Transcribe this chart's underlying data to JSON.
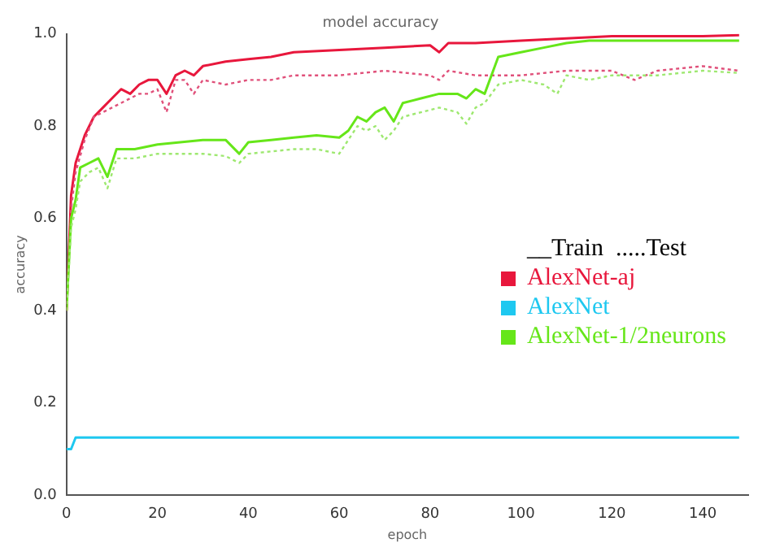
{
  "chart_data": {
    "type": "line",
    "title": "model accuracy",
    "xlabel": "epoch",
    "ylabel": "accuracy",
    "legend_title": "__Train  .....Test",
    "legend": "right",
    "marker": "none",
    "grid": false,
    "xlim": [
      0,
      150
    ],
    "xticks": [
      0,
      20,
      40,
      60,
      80,
      100,
      120,
      140
    ],
    "ylim": [
      0,
      1
    ],
    "yticks": [
      {
        "value": 0,
        "label": "0.0"
      },
      {
        "value": 0.2,
        "label": "0.2"
      },
      {
        "value": 0.4,
        "label": "0.4"
      },
      {
        "value": 0.6,
        "label": "0.6"
      },
      {
        "value": 0.8,
        "label": "0.8"
      },
      {
        "value": 1,
        "label": "1.0"
      }
    ],
    "series": [
      {
        "name": "AlexNet-aj",
        "color": "#e8173c",
        "line_style": "solid",
        "x": [
          0,
          1,
          2,
          4,
          6,
          8,
          10,
          12,
          14,
          16,
          18,
          20,
          22,
          24,
          26,
          28,
          30,
          35,
          40,
          45,
          50,
          60,
          70,
          80,
          82,
          84,
          90,
          100,
          110,
          120,
          130,
          140,
          148
        ],
        "values": [
          0.4,
          0.65,
          0.72,
          0.78,
          0.82,
          0.84,
          0.86,
          0.88,
          0.87,
          0.89,
          0.9,
          0.9,
          0.87,
          0.91,
          0.92,
          0.91,
          0.93,
          0.94,
          0.945,
          0.95,
          0.96,
          0.965,
          0.97,
          0.975,
          0.96,
          0.98,
          0.98,
          0.985,
          0.99,
          0.995,
          0.995,
          0.995,
          0.997
        ]
      },
      {
        "color": "#e0507a",
        "line_style": "dotted",
        "x": [
          0,
          1,
          2,
          4,
          6,
          8,
          10,
          12,
          14,
          16,
          18,
          20,
          22,
          24,
          26,
          28,
          30,
          35,
          40,
          45,
          50,
          60,
          70,
          80,
          82,
          84,
          90,
          100,
          110,
          120,
          125,
          130,
          140,
          148
        ],
        "values": [
          0.4,
          0.62,
          0.7,
          0.77,
          0.82,
          0.83,
          0.84,
          0.85,
          0.86,
          0.87,
          0.87,
          0.88,
          0.83,
          0.9,
          0.9,
          0.87,
          0.9,
          0.89,
          0.9,
          0.9,
          0.91,
          0.91,
          0.92,
          0.91,
          0.9,
          0.92,
          0.91,
          0.91,
          0.92,
          0.92,
          0.9,
          0.92,
          0.93,
          0.92
        ]
      },
      {
        "name": "AlexNet",
        "color": "#1ec8f0",
        "line_style": "solid",
        "x": [
          0,
          1,
          2,
          148
        ],
        "values": [
          0.1,
          0.1,
          0.125,
          0.125
        ]
      },
      {
        "name": "AlexNet-1/2neurons",
        "color": "#66e619",
        "line_style": "solid",
        "x": [
          0,
          1,
          2,
          3,
          5,
          7,
          9,
          11,
          15,
          20,
          25,
          30,
          35,
          38,
          40,
          45,
          50,
          55,
          60,
          62,
          64,
          66,
          68,
          70,
          72,
          74,
          78,
          82,
          86,
          88,
          90,
          92,
          95,
          100,
          105,
          110,
          115,
          120,
          130,
          140,
          148
        ],
        "values": [
          0.4,
          0.6,
          0.64,
          0.71,
          0.72,
          0.73,
          0.69,
          0.75,
          0.75,
          0.76,
          0.765,
          0.77,
          0.77,
          0.74,
          0.765,
          0.77,
          0.775,
          0.78,
          0.775,
          0.79,
          0.82,
          0.81,
          0.83,
          0.84,
          0.81,
          0.85,
          0.86,
          0.87,
          0.87,
          0.86,
          0.88,
          0.87,
          0.95,
          0.96,
          0.97,
          0.98,
          0.985,
          0.985,
          0.985,
          0.985,
          0.985
        ]
      },
      {
        "color": "#9ee870",
        "line_style": "dotted",
        "x": [
          0,
          1,
          2,
          3,
          5,
          7,
          9,
          11,
          15,
          20,
          25,
          30,
          35,
          38,
          40,
          45,
          50,
          55,
          60,
          62,
          64,
          66,
          68,
          70,
          72,
          74,
          78,
          82,
          86,
          88,
          90,
          92,
          95,
          100,
          105,
          108,
          110,
          115,
          120,
          130,
          140,
          148
        ],
        "values": [
          0.4,
          0.58,
          0.62,
          0.68,
          0.7,
          0.71,
          0.665,
          0.73,
          0.73,
          0.74,
          0.74,
          0.74,
          0.735,
          0.72,
          0.74,
          0.745,
          0.75,
          0.75,
          0.74,
          0.77,
          0.8,
          0.79,
          0.8,
          0.77,
          0.79,
          0.82,
          0.83,
          0.84,
          0.83,
          0.805,
          0.84,
          0.85,
          0.89,
          0.9,
          0.89,
          0.87,
          0.91,
          0.9,
          0.91,
          0.91,
          0.92,
          0.915
        ]
      }
    ]
  }
}
